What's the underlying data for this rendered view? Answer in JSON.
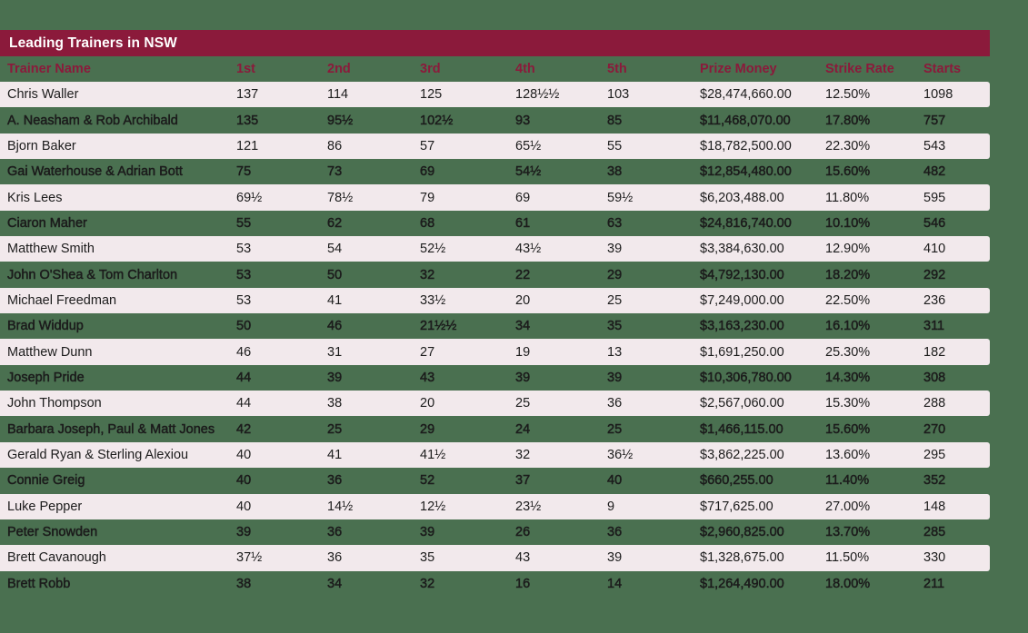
{
  "page": {
    "title": "Leading Trainers in NSW"
  },
  "colors": {
    "background_green": "#4A7050",
    "title_bar_maroon": "#8B1A3B",
    "header_text_maroon": "#8B1A3B",
    "row_light_pink": "#F2E9EC",
    "data_text": "#1C1C1C",
    "title_text": "#FFFFFF"
  },
  "chart_data": {
    "type": "table",
    "title": "Leading Trainers in NSW",
    "columns": [
      "Trainer Name",
      "1st",
      "2nd",
      "3rd",
      "4th",
      "5th",
      "Prize Money",
      "Strike Rate",
      "Starts"
    ],
    "rows": [
      [
        "Chris Waller",
        "137",
        "114",
        "125",
        "128½½",
        "103",
        "$28,474,660.00",
        "12.50%",
        "1098"
      ],
      [
        "A. Neasham & Rob Archibald",
        "135",
        "95½",
        "102½",
        "93",
        "85",
        "$11,468,070.00",
        "17.80%",
        "757"
      ],
      [
        "Bjorn Baker",
        "121",
        "86",
        "57",
        "65½",
        "55",
        "$18,782,500.00",
        "22.30%",
        "543"
      ],
      [
        "Gai Waterhouse & Adrian Bott",
        "75",
        "73",
        "69",
        "54½",
        "38",
        "$12,854,480.00",
        "15.60%",
        "482"
      ],
      [
        "Kris Lees",
        "69½",
        "78½",
        "79",
        "69",
        "59½",
        "$6,203,488.00",
        "11.80%",
        "595"
      ],
      [
        "Ciaron Maher",
        "55",
        "62",
        "68",
        "61",
        "63",
        "$24,816,740.00",
        "10.10%",
        "546"
      ],
      [
        "Matthew Smith",
        "53",
        "54",
        "52½",
        "43½",
        "39",
        "$3,384,630.00",
        "12.90%",
        "410"
      ],
      [
        "John O'Shea & Tom Charlton",
        "53",
        "50",
        "32",
        "22",
        "29",
        "$4,792,130.00",
        "18.20%",
        "292"
      ],
      [
        "Michael Freedman",
        "53",
        "41",
        "33½",
        "20",
        "25",
        "$7,249,000.00",
        "22.50%",
        "236"
      ],
      [
        "Brad Widdup",
        "50",
        "46",
        "21½½",
        "34",
        "35",
        "$3,163,230.00",
        "16.10%",
        "311"
      ],
      [
        "Matthew Dunn",
        "46",
        "31",
        "27",
        "19",
        "13",
        "$1,691,250.00",
        "25.30%",
        "182"
      ],
      [
        "Joseph Pride",
        "44",
        "39",
        "43",
        "39",
        "39",
        "$10,306,780.00",
        "14.30%",
        "308"
      ],
      [
        "John Thompson",
        "44",
        "38",
        "20",
        "25",
        "36",
        "$2,567,060.00",
        "15.30%",
        "288"
      ],
      [
        "Barbara Joseph, Paul & Matt Jones",
        "42",
        "25",
        "29",
        "24",
        "25",
        "$1,466,115.00",
        "15.60%",
        "270"
      ],
      [
        "Gerald Ryan & Sterling Alexiou",
        "40",
        "41",
        "41½",
        "32",
        "36½",
        "$3,862,225.00",
        "13.60%",
        "295"
      ],
      [
        "Connie Greig",
        "40",
        "36",
        "52",
        "37",
        "40",
        "$660,255.00",
        "11.40%",
        "352"
      ],
      [
        "Luke Pepper",
        "40",
        "14½",
        "12½",
        "23½",
        "9",
        "$717,625.00",
        "27.00%",
        "148"
      ],
      [
        "Peter Snowden",
        "39",
        "36",
        "39",
        "26",
        "36",
        "$2,960,825.00",
        "13.70%",
        "285"
      ],
      [
        "Brett Cavanough",
        "37½",
        "36",
        "35",
        "43",
        "39",
        "$1,328,675.00",
        "11.50%",
        "330"
      ],
      [
        "Brett Robb",
        "38",
        "34",
        "32",
        "16",
        "14",
        "$1,264,490.00",
        "18.00%",
        "211"
      ]
    ],
    "layout_hints": {
      "row_striping": "odd rows light pink, even rows transparent over green background",
      "alignment": "all columns left-aligned",
      "header_style": "maroon bold text on green background",
      "title_style": "white bold text on maroon bar"
    }
  }
}
